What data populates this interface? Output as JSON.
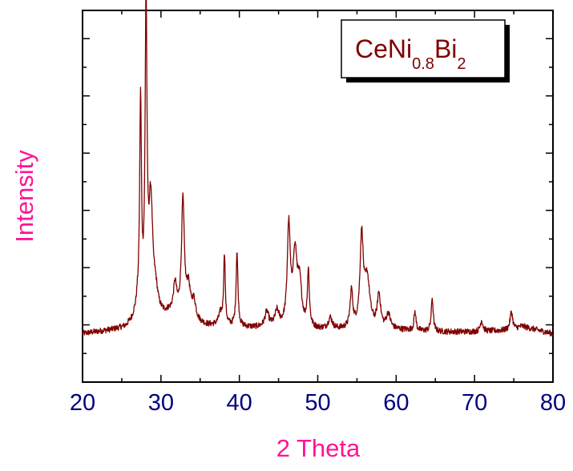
{
  "chart_data": {
    "type": "line",
    "title": "",
    "xlabel": "2 Theta",
    "ylabel": "Intensity",
    "xlim": [
      20,
      80
    ],
    "ylim": [
      0,
      100
    ],
    "x_ticks": [
      20,
      30,
      40,
      50,
      60,
      70,
      80
    ],
    "y_ticks_labeled": false,
    "grid": false,
    "colors": {
      "line": "#7f0000",
      "tick_labels": "#00007f",
      "axis_titles": "#ff1493",
      "legend_text": "#7f0000"
    },
    "legend": {
      "placement": "top-right",
      "text": {
        "main1": "CeNi",
        "sub1": "0.8",
        "main2": "Bi",
        "sub2": "2"
      }
    },
    "series": [
      {
        "baseline": [
          [
            20,
            13
          ],
          [
            22,
            13.5
          ],
          [
            24,
            14
          ],
          [
            25.5,
            14.5
          ],
          [
            26.3,
            16
          ],
          [
            26.8,
            18
          ],
          [
            27,
            20
          ],
          [
            29,
            16
          ],
          [
            30,
            17
          ],
          [
            31,
            18
          ],
          [
            34,
            16
          ],
          [
            36,
            15
          ],
          [
            38,
            15
          ],
          [
            42,
            14.5
          ],
          [
            45,
            14.5
          ],
          [
            50,
            14
          ],
          [
            55,
            14
          ],
          [
            60,
            14
          ],
          [
            65,
            13.5
          ],
          [
            70,
            13.5
          ],
          [
            75,
            14
          ],
          [
            76,
            15
          ],
          [
            77,
            14.5
          ],
          [
            80,
            13
          ]
        ],
        "peaks": [
          {
            "x": 27.4,
            "h": 55,
            "w": 0.13
          },
          {
            "x": 28.1,
            "h": 83,
            "w": 0.14
          },
          {
            "x": 28.7,
            "h": 30,
            "w": 0.3
          },
          {
            "x": 29.3,
            "h": 6,
            "w": 0.4
          },
          {
            "x": 31.8,
            "h": 8,
            "w": 0.25
          },
          {
            "x": 32.8,
            "h": 31,
            "w": 0.22
          },
          {
            "x": 33.5,
            "h": 8,
            "w": 0.3
          },
          {
            "x": 34.2,
            "h": 5,
            "w": 0.3
          },
          {
            "x": 37.6,
            "h": 3,
            "w": 0.3
          },
          {
            "x": 38.1,
            "h": 19,
            "w": 0.12
          },
          {
            "x": 39.7,
            "h": 20,
            "w": 0.14
          },
          {
            "x": 43.5,
            "h": 4,
            "w": 0.3
          },
          {
            "x": 44.8,
            "h": 4,
            "w": 0.3
          },
          {
            "x": 46.3,
            "h": 26,
            "w": 0.22
          },
          {
            "x": 47.1,
            "h": 19,
            "w": 0.35
          },
          {
            "x": 47.7,
            "h": 10,
            "w": 0.3
          },
          {
            "x": 48.8,
            "h": 15,
            "w": 0.15
          },
          {
            "x": 51.6,
            "h": 3,
            "w": 0.3
          },
          {
            "x": 54.3,
            "h": 10,
            "w": 0.2
          },
          {
            "x": 55.6,
            "h": 24,
            "w": 0.25
          },
          {
            "x": 56.3,
            "h": 13,
            "w": 0.4
          },
          {
            "x": 57.8,
            "h": 9,
            "w": 0.25
          },
          {
            "x": 59.0,
            "h": 4,
            "w": 0.3
          },
          {
            "x": 62.4,
            "h": 5,
            "w": 0.15
          },
          {
            "x": 64.6,
            "h": 9,
            "w": 0.15
          },
          {
            "x": 70.9,
            "h": 3,
            "w": 0.2
          },
          {
            "x": 74.7,
            "h": 5,
            "w": 0.2
          }
        ]
      }
    ]
  }
}
